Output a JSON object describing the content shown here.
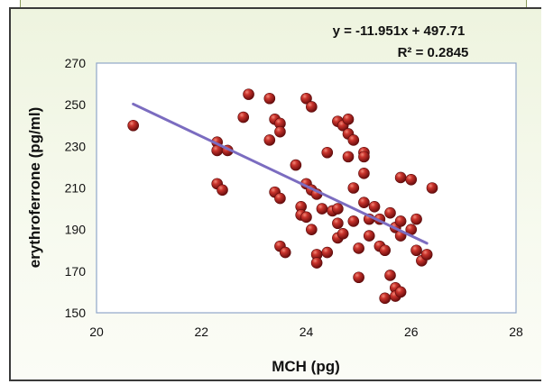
{
  "chart_data": {
    "type": "scatter",
    "title": "",
    "xlabel": "MCH (pg)",
    "ylabel": "erythroferrone (pg/ml)",
    "xlim": [
      20,
      28
    ],
    "ylim": [
      150,
      270
    ],
    "xticks": [
      20,
      22,
      24,
      26,
      28
    ],
    "yticks": [
      150,
      170,
      190,
      210,
      230,
      250,
      270
    ],
    "grid": false,
    "equation": "y = -11.951x + 497.71",
    "r_squared": "R² = 0.2845",
    "trendline": {
      "slope": -11.951,
      "intercept": 497.71,
      "x_range": [
        20.7,
        26.3
      ],
      "color": "#7b6cc0"
    },
    "marker_color": "#a31f1f",
    "series": [
      {
        "points": [
          [
            20.7,
            240
          ],
          [
            22.3,
            232
          ],
          [
            22.3,
            228
          ],
          [
            22.3,
            212
          ],
          [
            22.4,
            209
          ],
          [
            22.5,
            228
          ],
          [
            22.8,
            244
          ],
          [
            22.9,
            255
          ],
          [
            23.3,
            253
          ],
          [
            23.3,
            233
          ],
          [
            23.4,
            243
          ],
          [
            23.4,
            208
          ],
          [
            23.5,
            241
          ],
          [
            23.5,
            237
          ],
          [
            23.5,
            205
          ],
          [
            23.5,
            182
          ],
          [
            23.6,
            179
          ],
          [
            23.8,
            221
          ],
          [
            23.9,
            201
          ],
          [
            23.9,
            197
          ],
          [
            24.0,
            253
          ],
          [
            24.0,
            212
          ],
          [
            24.0,
            196
          ],
          [
            24.1,
            249
          ],
          [
            24.1,
            209
          ],
          [
            24.1,
            190
          ],
          [
            24.2,
            178
          ],
          [
            24.2,
            174
          ],
          [
            24.2,
            207
          ],
          [
            24.3,
            200
          ],
          [
            24.4,
            227
          ],
          [
            24.4,
            179
          ],
          [
            24.5,
            199
          ],
          [
            24.6,
            242
          ],
          [
            24.6,
            200
          ],
          [
            24.6,
            193
          ],
          [
            24.6,
            186
          ],
          [
            24.7,
            188
          ],
          [
            24.7,
            240
          ],
          [
            24.8,
            243
          ],
          [
            24.8,
            236
          ],
          [
            24.8,
            225
          ],
          [
            24.9,
            233
          ],
          [
            24.9,
            210
          ],
          [
            24.9,
            194
          ],
          [
            25.0,
            181
          ],
          [
            25.0,
            167
          ],
          [
            25.1,
            227
          ],
          [
            25.1,
            225
          ],
          [
            25.1,
            217
          ],
          [
            25.1,
            203
          ],
          [
            25.2,
            195
          ],
          [
            25.2,
            187
          ],
          [
            25.3,
            201
          ],
          [
            25.4,
            182
          ],
          [
            25.4,
            195
          ],
          [
            25.5,
            180
          ],
          [
            25.5,
            157
          ],
          [
            25.6,
            198
          ],
          [
            25.6,
            168
          ],
          [
            25.7,
            191
          ],
          [
            25.7,
            162
          ],
          [
            25.7,
            158
          ],
          [
            25.8,
            215
          ],
          [
            25.8,
            187
          ],
          [
            25.8,
            194
          ],
          [
            25.8,
            160
          ],
          [
            26.0,
            214
          ],
          [
            26.0,
            190
          ],
          [
            26.1,
            195
          ],
          [
            26.1,
            180
          ],
          [
            26.2,
            175
          ],
          [
            26.3,
            178
          ],
          [
            26.4,
            210
          ]
        ]
      }
    ]
  }
}
